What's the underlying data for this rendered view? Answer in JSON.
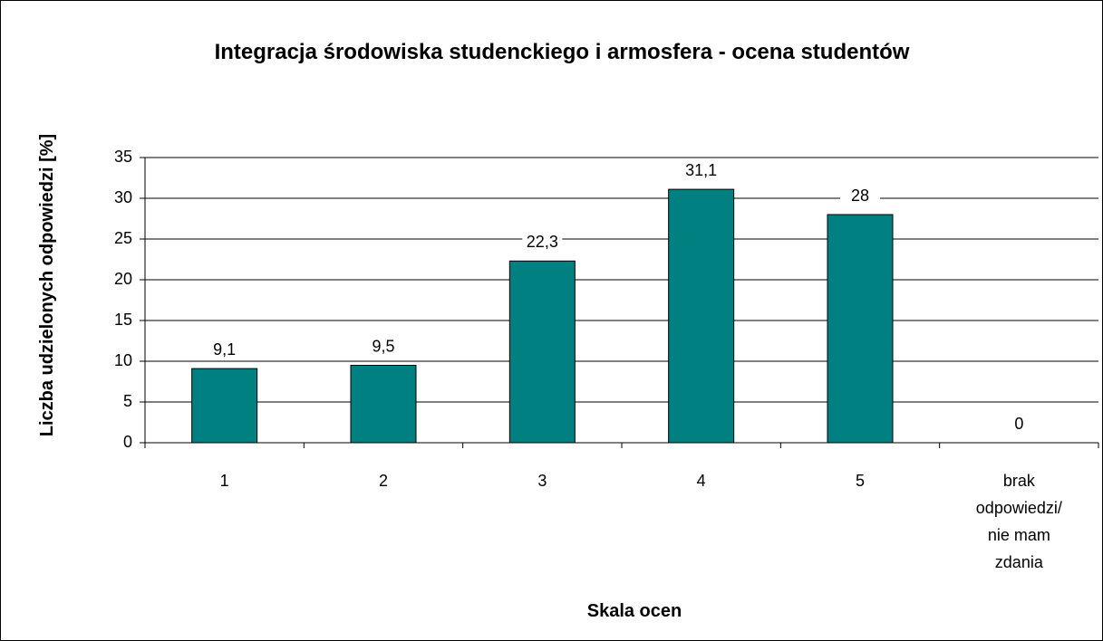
{
  "chart_data": {
    "type": "bar",
    "title": "Integracja środowiska studenckiego i armosfera - ocena studentów",
    "x_label": "Skala ocen",
    "y_label": "Liczba udzielonych odpowiedzi [%]",
    "categories": [
      "1",
      "2",
      "3",
      "4",
      "5",
      "brak odpowiedzi/ nie mam zdania"
    ],
    "values": [
      9.1,
      9.5,
      22.3,
      31.1,
      28,
      0
    ],
    "value_labels": [
      "9,1",
      "9,5",
      "22,3",
      "31,1",
      "28",
      "0"
    ],
    "color": "#008080",
    "ylim": [
      0,
      35
    ],
    "yticks": [
      0,
      5,
      10,
      15,
      20,
      25,
      30,
      35
    ],
    "grid": true
  }
}
